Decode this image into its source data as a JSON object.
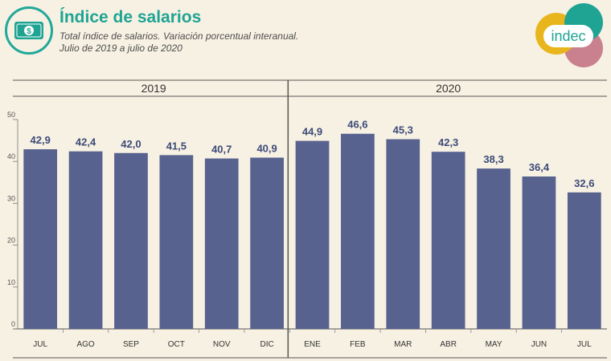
{
  "header": {
    "title": "Índice de salarios",
    "subtitle": "Total índice de salarios. Variación porcentual interanual.",
    "period": "Julio de 2019 a julio de 2020"
  },
  "logo": {
    "text": "indec",
    "icon": "indec-logo-circles"
  },
  "badge": {
    "icon": "money-bill-icon",
    "symbol": "$"
  },
  "colors": {
    "bar": "#57628f",
    "accent": "#1fa494",
    "logo_yellow": "#e8b61c",
    "logo_green": "#1fa494",
    "logo_pink": "#c9808f"
  },
  "chart_data": {
    "type": "bar",
    "title": "Índice de salarios",
    "years": [
      {
        "label": "2019",
        "start": 0,
        "end": 5
      },
      {
        "label": "2020",
        "start": 6,
        "end": 12
      }
    ],
    "categories": [
      "JUL",
      "AGO",
      "SEP",
      "OCT",
      "NOV",
      "DIC",
      "ENE",
      "FEB",
      "MAR",
      "ABR",
      "MAY",
      "JUN",
      "JUL"
    ],
    "values": [
      42.9,
      42.4,
      42.0,
      41.5,
      40.7,
      40.9,
      44.9,
      46.6,
      45.3,
      42.3,
      38.3,
      36.4,
      32.6
    ],
    "value_labels": [
      "42,9",
      "42,4",
      "42,0",
      "41,5",
      "40,7",
      "40,9",
      "44,9",
      "46,6",
      "45,3",
      "42,3",
      "38,3",
      "36,4",
      "32,6"
    ],
    "yticks": [
      0,
      10,
      20,
      30,
      40,
      50
    ],
    "ylim": [
      0,
      50
    ],
    "xlabel": "",
    "ylabel": ""
  }
}
